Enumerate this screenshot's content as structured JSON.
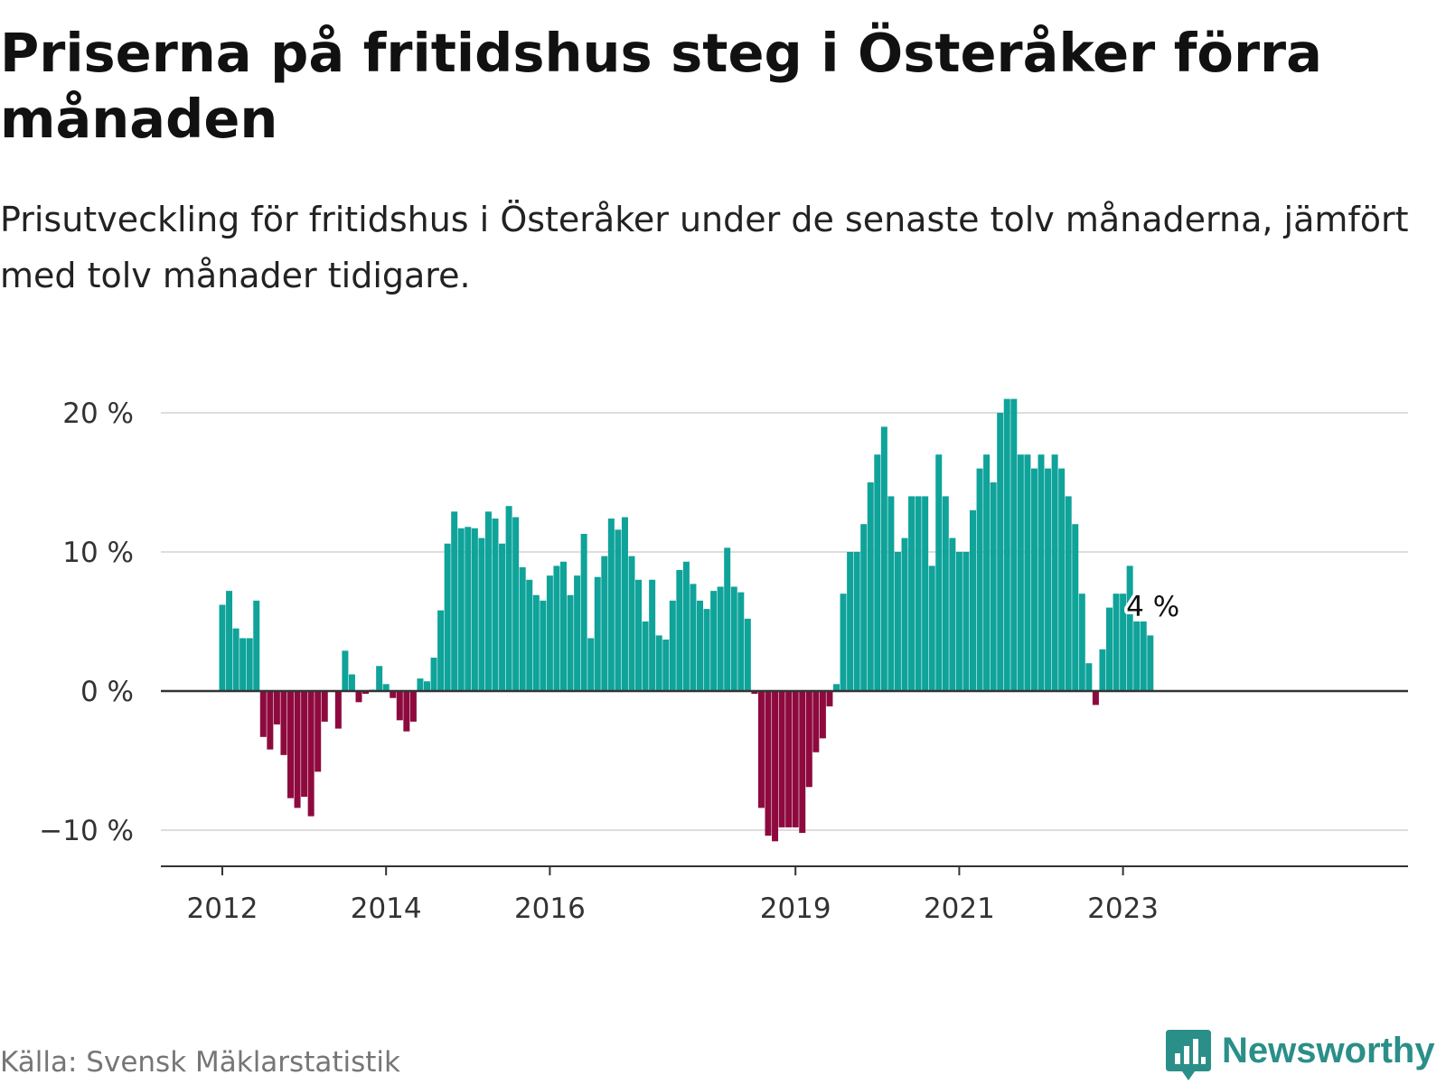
{
  "title": "Priserna på fritidshus steg i Österåker förra månaden",
  "subtitle": "Prisutveckling för fritidshus i Österåker under de senaste tolv månaderna, jämfört med tolv månader tidigare.",
  "source": "Källa: Svensk Mäklarstatistik",
  "brand": {
    "name": "Newsworthy",
    "icon": "newsworthy-logo-icon"
  },
  "colors": {
    "positive": "#0fa39a",
    "negative": "#8e0a3e",
    "grid": "#dddddd",
    "axis": "#333333",
    "brand": "#2a8f88"
  },
  "chart_data": {
    "type": "bar",
    "title": "Priserna på fritidshus steg i Österåker förra månaden",
    "xlabel": "",
    "ylabel": "",
    "unit": "%",
    "ylim": [
      -12.6,
      20
    ],
    "y_ticks": [
      {
        "value": 20,
        "label": "20 %"
      },
      {
        "value": 10,
        "label": "10 %"
      },
      {
        "value": 0,
        "label": "0 %"
      },
      {
        "value": -10,
        "label": "−10 %"
      }
    ],
    "x_ticks": [
      {
        "index": 0,
        "label": "2012"
      },
      {
        "index": 24,
        "label": "2014"
      },
      {
        "index": 48,
        "label": "2016"
      },
      {
        "index": 84,
        "label": "2019"
      },
      {
        "index": 108,
        "label": "2021"
      },
      {
        "index": 132,
        "label": "2023"
      }
    ],
    "annotation": {
      "index": 133,
      "label": "4 %"
    },
    "grid": true,
    "legend": "none",
    "series": [
      {
        "name": "Prisutveckling",
        "start": "2012-01",
        "values": [
          6.2,
          7.2,
          4.5,
          3.8,
          3.8,
          6.5,
          -3.3,
          -4.2,
          -2.4,
          -4.6,
          -7.7,
          -8.4,
          -7.6,
          -9.0,
          -5.8,
          -2.2,
          0,
          -2.7,
          2.9,
          1.2,
          -0.8,
          -0.2,
          0.1,
          1.8,
          0.5,
          -0.5,
          -2.1,
          -2.9,
          -2.2,
          0.9,
          0.7,
          2.4,
          5.8,
          10.6,
          12.9,
          11.7,
          11.8,
          11.7,
          11.0,
          12.9,
          12.4,
          10.6,
          13.3,
          12.5,
          8.9,
          8.0,
          6.9,
          6.5,
          8.3,
          9.0,
          9.3,
          6.9,
          8.3,
          11.3,
          3.8,
          8.2,
          9.7,
          12.4,
          11.6,
          12.5,
          9.7,
          8.0,
          5.0,
          8.0,
          4.0,
          3.7,
          6.5,
          8.7,
          9.3,
          7.7,
          6.5,
          5.9,
          7.2,
          7.5,
          10.3,
          7.5,
          7.1,
          5.2,
          -0.2,
          -8.4,
          -10.4,
          -10.8,
          -9.8,
          -9.8,
          -9.8,
          -10.2,
          -6.9,
          -4.4,
          -3.4,
          -1.1,
          0.5,
          7.0,
          10.0,
          10.0,
          12.0,
          15.0,
          17.0,
          19.0,
          14.0,
          10.0,
          11.0,
          14.0,
          14.0,
          14.0,
          9.0,
          17.0,
          14.0,
          11.0,
          10.0,
          10.0,
          13.0,
          16.0,
          17.0,
          15.0,
          20.0,
          21.0,
          21.0,
          17.0,
          17.0,
          16.0,
          17.0,
          16.0,
          17.0,
          16.0,
          14.0,
          12.0,
          7.0,
          2.0,
          -1.0,
          3.0,
          6.0,
          7.0,
          7.0,
          9.0,
          5.0,
          5.0,
          4.0
        ]
      }
    ]
  }
}
